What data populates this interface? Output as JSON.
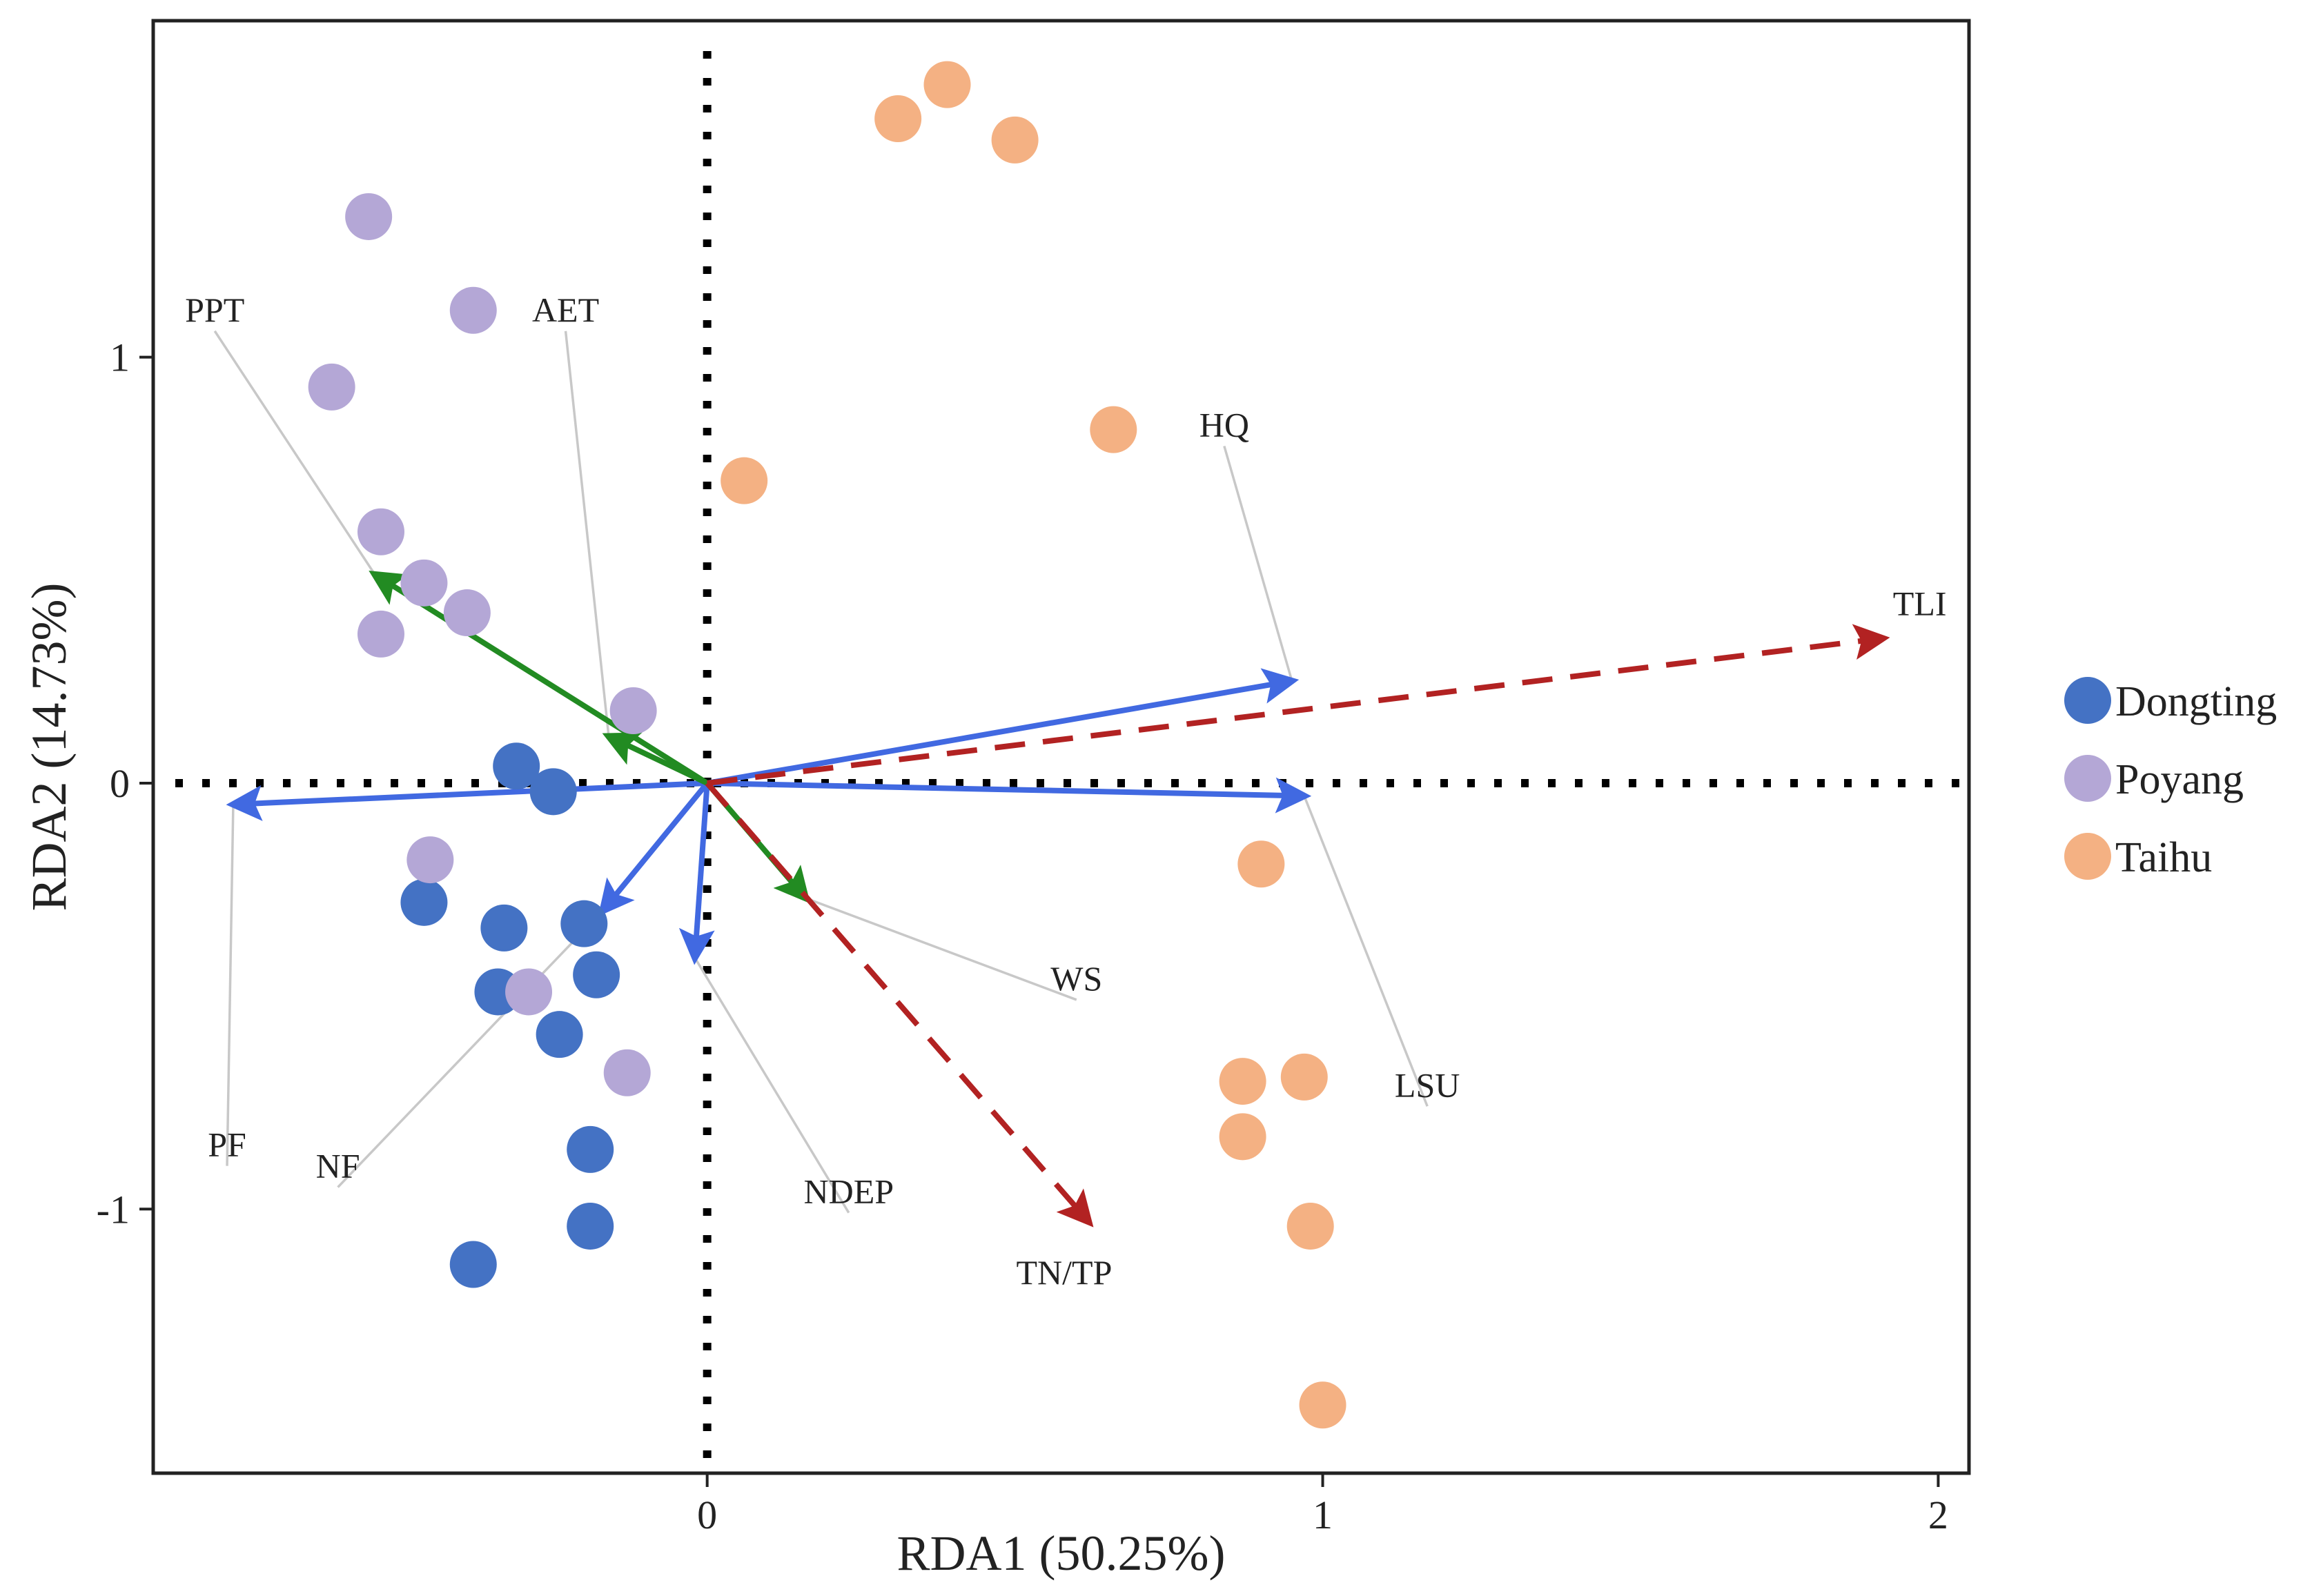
{
  "chart_data": {
    "type": "scatter",
    "subtype": "RDA biplot",
    "xlabel": "RDA1 (50.25%)",
    "ylabel": "RDA2 (14.73%)",
    "xlim": [
      -0.9,
      2.05
    ],
    "ylim": [
      -1.62,
      1.79
    ],
    "x_ticks": [
      {
        "value": 0,
        "label": "0"
      },
      {
        "value": 1,
        "label": "1"
      },
      {
        "value": 2,
        "label": "2"
      }
    ],
    "y_ticks": [
      {
        "value": 1,
        "label": "1"
      },
      {
        "value": 0,
        "label": "0"
      },
      {
        "value": -1,
        "label": "-1"
      }
    ],
    "reference_lines": {
      "x": 0,
      "y": 0,
      "style": "dotted"
    },
    "legend": {
      "placement": "right",
      "entries": [
        {
          "name": "Dongting",
          "color": "#4472c4"
        },
        {
          "name": "Poyang",
          "color": "#b4a7d6"
        },
        {
          "name": "Taihu",
          "color": "#f4b183"
        }
      ]
    },
    "series": [
      {
        "name": "Dongting",
        "color": "#4472c4",
        "points": [
          [
            -0.31,
            0.04
          ],
          [
            -0.25,
            -0.02
          ],
          [
            -0.46,
            -0.28
          ],
          [
            -0.33,
            -0.34
          ],
          [
            -0.34,
            -0.49
          ],
          [
            -0.2,
            -0.33
          ],
          [
            -0.18,
            -0.45
          ],
          [
            -0.24,
            -0.59
          ],
          [
            -0.19,
            -0.86
          ],
          [
            -0.19,
            -1.04
          ],
          [
            -0.38,
            -1.13
          ]
        ]
      },
      {
        "name": "Poyang",
        "color": "#b4a7d6",
        "points": [
          [
            -0.55,
            1.33
          ],
          [
            -0.38,
            1.11
          ],
          [
            -0.61,
            0.93
          ],
          [
            -0.53,
            0.59
          ],
          [
            -0.46,
            0.47
          ],
          [
            -0.39,
            0.4
          ],
          [
            -0.53,
            0.35
          ],
          [
            -0.12,
            0.17
          ],
          [
            -0.45,
            -0.18
          ],
          [
            -0.29,
            -0.49
          ],
          [
            -0.13,
            -0.68
          ]
        ]
      },
      {
        "name": "Taihu",
        "color": "#f4b183",
        "points": [
          [
            0.39,
            1.64
          ],
          [
            0.31,
            1.56
          ],
          [
            0.5,
            1.51
          ],
          [
            0.66,
            0.83
          ],
          [
            0.06,
            0.71
          ],
          [
            0.9,
            -0.19
          ],
          [
            0.87,
            -0.7
          ],
          [
            0.97,
            -0.69
          ],
          [
            0.87,
            -0.83
          ],
          [
            0.98,
            -1.04
          ],
          [
            1.0,
            -1.46
          ]
        ]
      }
    ],
    "vectors": [
      {
        "name": "HQ",
        "x": 0.95,
        "y": 0.24,
        "color": "#4169e1",
        "style": "solid",
        "label_x": 0.84,
        "label_y": 0.84
      },
      {
        "name": "LSU",
        "x": 0.97,
        "y": -0.03,
        "color": "#4169e1",
        "style": "solid",
        "label_x": 1.17,
        "label_y": -0.71
      },
      {
        "name": "PF",
        "x": -0.77,
        "y": -0.05,
        "color": "#4169e1",
        "style": "solid",
        "label_x": -0.78,
        "label_y": -0.85
      },
      {
        "name": "NF",
        "x": -0.17,
        "y": -0.3,
        "color": "#4169e1",
        "style": "solid",
        "label_x": -0.6,
        "label_y": -0.9
      },
      {
        "name": "NDEP",
        "x": -0.02,
        "y": -0.41,
        "color": "#4169e1",
        "style": "solid",
        "label_x": 0.23,
        "label_y": -0.96
      },
      {
        "name": "PPT",
        "x": -0.54,
        "y": 0.49,
        "color": "#228b22",
        "style": "solid",
        "label_x": -0.8,
        "label_y": 1.11
      },
      {
        "name": "AET",
        "x": -0.16,
        "y": 0.11,
        "color": "#228b22",
        "style": "solid",
        "label_x": -0.23,
        "label_y": 1.11
      },
      {
        "name": "WS",
        "x": 0.16,
        "y": -0.27,
        "color": "#228b22",
        "style": "solid",
        "label_x": 0.6,
        "label_y": -0.46
      },
      {
        "name": "TLI",
        "x": 1.91,
        "y": 0.34,
        "color": "#b22222",
        "style": "dashed",
        "label_x": 1.97,
        "label_y": 0.42
      },
      {
        "name": "TN/TP",
        "x": 0.62,
        "y": -1.03,
        "color": "#b22222",
        "style": "dashed",
        "label_x": 0.58,
        "label_y": -1.15
      }
    ],
    "label_leaders": [
      "HQ",
      "LSU",
      "PF",
      "NF",
      "NDEP",
      "PPT",
      "AET",
      "WS"
    ]
  }
}
